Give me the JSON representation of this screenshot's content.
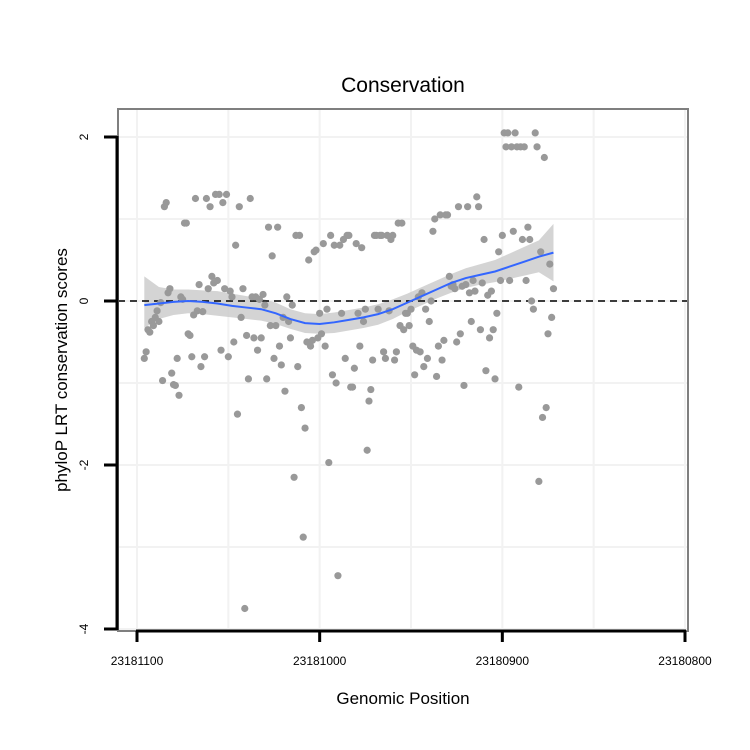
{
  "chart_data": {
    "type": "scatter",
    "title": "Conservation",
    "xlabel": "Genomic Position",
    "ylabel": "phyloP LRT conservation scores",
    "xlim": [
      23181100,
      23180800
    ],
    "x_reversed": true,
    "ylim": [
      -4,
      2.4
    ],
    "x_ticks": [
      23181100,
      23181000,
      23180900,
      23180800
    ],
    "x_tick_labels": [
      "23181100",
      "23181000",
      "23180900",
      "23180800"
    ],
    "y_ticks": [
      -4,
      -2,
      0,
      2
    ],
    "y_tick_labels": [
      "-4",
      "-2",
      "0",
      "2"
    ],
    "grid": true,
    "legend": "none",
    "reference_line": {
      "y": 0,
      "style": "dashed",
      "color": "#000000"
    },
    "colors": {
      "points": "#999999",
      "smooth_line": "#3366ff",
      "confidence_band": "#cccccc",
      "panel_border": "#7f7f7f",
      "grid": "#f2f2f2"
    },
    "series": [
      {
        "type": "scatter",
        "points": [
          [
            23181096,
            -0.7
          ],
          [
            23181095,
            -0.62
          ],
          [
            23181094,
            -0.35
          ],
          [
            23181093,
            -0.38
          ],
          [
            23181092,
            -0.25
          ],
          [
            23181091,
            -0.3
          ],
          [
            23181090,
            -0.2
          ],
          [
            23181089,
            -0.12
          ],
          [
            23181088,
            -0.25
          ],
          [
            23181087,
            -0.02
          ],
          [
            23181086,
            -0.97
          ],
          [
            23181085,
            1.15
          ],
          [
            23181084,
            1.2
          ],
          [
            23181083,
            0.1
          ],
          [
            23181082,
            0.15
          ],
          [
            23181081,
            -0.88
          ],
          [
            23181080,
            -1.02
          ],
          [
            23181079,
            -1.03
          ],
          [
            23181078,
            -0.7
          ],
          [
            23181077,
            -1.15
          ],
          [
            23181076,
            0.05
          ],
          [
            23181075,
            0.02
          ],
          [
            23181074,
            0.95
          ],
          [
            23181073,
            0.95
          ],
          [
            23181072,
            -0.4
          ],
          [
            23181071,
            -0.42
          ],
          [
            23181070,
            -0.68
          ],
          [
            23181069,
            -0.17
          ],
          [
            23181068,
            1.25
          ],
          [
            23181067,
            -0.12
          ],
          [
            23181066,
            0.2
          ],
          [
            23181065,
            -0.8
          ],
          [
            23181064,
            -0.13
          ],
          [
            23181063,
            -0.68
          ],
          [
            23181062,
            1.25
          ],
          [
            23181061,
            0.15
          ],
          [
            23181060,
            1.15
          ],
          [
            23181059,
            0.3
          ],
          [
            23181058,
            0.22
          ],
          [
            23181057,
            1.3
          ],
          [
            23181056,
            0.25
          ],
          [
            23181055,
            1.3
          ],
          [
            23181054,
            -0.6
          ],
          [
            23181053,
            1.2
          ],
          [
            23181052,
            0.15
          ],
          [
            23181051,
            1.3
          ],
          [
            23181050,
            -0.68
          ],
          [
            23181049,
            0.12
          ],
          [
            23181048,
            0.05
          ],
          [
            23181047,
            -0.5
          ],
          [
            23181046,
            0.68
          ],
          [
            23181045,
            -1.38
          ],
          [
            23181044,
            1.15
          ],
          [
            23181043,
            -0.2
          ],
          [
            23181042,
            0.15
          ],
          [
            23181041,
            -3.75
          ],
          [
            23181040,
            -0.42
          ],
          [
            23181039,
            -0.95
          ],
          [
            23181038,
            1.25
          ],
          [
            23181037,
            0.05
          ],
          [
            23181036,
            -0.45
          ],
          [
            23181035,
            0.05
          ],
          [
            23181034,
            -0.6
          ],
          [
            23181033,
            0.02
          ],
          [
            23181032,
            -0.45
          ],
          [
            23181031,
            0.08
          ],
          [
            23181030,
            -0.05
          ],
          [
            23181029,
            -0.95
          ],
          [
            23181028,
            0.9
          ],
          [
            23181027,
            -0.3
          ],
          [
            23181026,
            0.55
          ],
          [
            23181025,
            -0.7
          ],
          [
            23181024,
            -0.3
          ],
          [
            23181023,
            0.9
          ],
          [
            23181022,
            -0.55
          ],
          [
            23181021,
            -0.78
          ],
          [
            23181020,
            -0.2
          ],
          [
            23181019,
            -1.1
          ],
          [
            23181018,
            0.05
          ],
          [
            23181017,
            -0.25
          ],
          [
            23181016,
            -0.45
          ],
          [
            23181015,
            -0.05
          ],
          [
            23181014,
            -2.15
          ],
          [
            23181013,
            0.8
          ],
          [
            23181012,
            -0.8
          ],
          [
            23181011,
            0.8
          ],
          [
            23181010,
            -1.3
          ],
          [
            23181009,
            -2.88
          ],
          [
            23181008,
            -1.55
          ],
          [
            23181007,
            -0.5
          ],
          [
            23181006,
            0.5
          ],
          [
            23181005,
            -0.55
          ],
          [
            23181004,
            -0.48
          ],
          [
            23181003,
            0.6
          ],
          [
            23181002,
            0.62
          ],
          [
            23181001,
            -0.45
          ],
          [
            23181000,
            -0.15
          ],
          [
            23180999,
            -0.4
          ],
          [
            23180998,
            0.7
          ],
          [
            23180997,
            -0.55
          ],
          [
            23180996,
            -0.1
          ],
          [
            23180995,
            -1.97
          ],
          [
            23180994,
            0.8
          ],
          [
            23180993,
            -0.9
          ],
          [
            23180992,
            0.68
          ],
          [
            23180991,
            -1.0
          ],
          [
            23180990,
            -3.35
          ],
          [
            23180989,
            0.68
          ],
          [
            23180988,
            -0.15
          ],
          [
            23180987,
            0.75
          ],
          [
            23180986,
            -0.7
          ],
          [
            23180985,
            0.8
          ],
          [
            23180984,
            0.8
          ],
          [
            23180983,
            -1.05
          ],
          [
            23180982,
            -1.05
          ],
          [
            23180981,
            -0.82
          ],
          [
            23180980,
            0.7
          ],
          [
            23180979,
            -0.15
          ],
          [
            23180978,
            -0.55
          ],
          [
            23180977,
            0.65
          ],
          [
            23180976,
            -0.25
          ],
          [
            23180975,
            -0.1
          ],
          [
            23180974,
            -1.82
          ],
          [
            23180973,
            -1.22
          ],
          [
            23180972,
            -1.08
          ],
          [
            23180971,
            -0.72
          ],
          [
            23180970,
            0.8
          ],
          [
            23180969,
            0.8
          ],
          [
            23180968,
            -0.1
          ],
          [
            23180967,
            0.8
          ],
          [
            23180966,
            0.8
          ],
          [
            23180965,
            -0.62
          ],
          [
            23180964,
            -0.7
          ],
          [
            23180963,
            0.8
          ],
          [
            23180962,
            -0.12
          ],
          [
            23180961,
            0.75
          ],
          [
            23180960,
            0.8
          ],
          [
            23180959,
            -0.72
          ],
          [
            23180958,
            -0.62
          ],
          [
            23180957,
            0.95
          ],
          [
            23180956,
            -0.3
          ],
          [
            23180955,
            0.95
          ],
          [
            23180954,
            -0.35
          ],
          [
            23180953,
            -0.15
          ],
          [
            23180952,
            -0.15
          ],
          [
            23180951,
            -0.3
          ],
          [
            23180950,
            -0.1
          ],
          [
            23180949,
            -0.55
          ],
          [
            23180948,
            -0.9
          ],
          [
            23180947,
            -0.6
          ],
          [
            23180946,
            0.05
          ],
          [
            23180945,
            -0.62
          ],
          [
            23180944,
            0.1
          ],
          [
            23180943,
            -0.8
          ],
          [
            23180942,
            -0.1
          ],
          [
            23180941,
            -0.7
          ],
          [
            23180940,
            -0.25
          ],
          [
            23180939,
            0.0
          ],
          [
            23180938,
            0.85
          ],
          [
            23180937,
            1.0
          ],
          [
            23180936,
            -0.92
          ],
          [
            23180935,
            -0.55
          ],
          [
            23180934,
            1.05
          ],
          [
            23180933,
            -0.72
          ],
          [
            23180932,
            -0.48
          ],
          [
            23180931,
            1.05
          ],
          [
            23180930,
            1.05
          ],
          [
            23180929,
            0.3
          ],
          [
            23180928,
            0.18
          ],
          [
            23180927,
            0.2
          ],
          [
            23180926,
            0.15
          ],
          [
            23180925,
            -0.5
          ],
          [
            23180924,
            1.15
          ],
          [
            23180923,
            -0.4
          ],
          [
            23180922,
            0.18
          ],
          [
            23180921,
            -1.03
          ],
          [
            23180920,
            0.2
          ],
          [
            23180919,
            1.15
          ],
          [
            23180918,
            0.1
          ],
          [
            23180917,
            -0.25
          ],
          [
            23180916,
            0.25
          ],
          [
            23180915,
            0.12
          ],
          [
            23180914,
            1.27
          ],
          [
            23180913,
            1.15
          ],
          [
            23180912,
            -0.35
          ],
          [
            23180911,
            0.22
          ],
          [
            23180910,
            0.75
          ],
          [
            23180909,
            -0.85
          ],
          [
            23180908,
            0.07
          ],
          [
            23180907,
            -0.45
          ],
          [
            23180906,
            0.12
          ],
          [
            23180905,
            -0.35
          ],
          [
            23180904,
            -0.95
          ],
          [
            23180903,
            -0.15
          ],
          [
            23180902,
            0.6
          ],
          [
            23180901,
            0.25
          ],
          [
            23180900,
            0.8
          ],
          [
            23180899,
            2.05
          ],
          [
            23180898,
            1.88
          ],
          [
            23180897,
            2.05
          ],
          [
            23180896,
            0.25
          ],
          [
            23180895,
            1.88
          ],
          [
            23180894,
            0.85
          ],
          [
            23180893,
            2.05
          ],
          [
            23180892,
            1.88
          ],
          [
            23180891,
            -1.05
          ],
          [
            23180890,
            1.88
          ],
          [
            23180889,
            0.75
          ],
          [
            23180888,
            1.88
          ],
          [
            23180887,
            0.25
          ],
          [
            23180886,
            0.9
          ],
          [
            23180885,
            0.75
          ],
          [
            23180884,
            0.0
          ],
          [
            23180883,
            -0.1
          ],
          [
            23180882,
            2.05
          ],
          [
            23180881,
            1.88
          ],
          [
            23180880,
            -2.2
          ],
          [
            23180879,
            0.6
          ],
          [
            23180878,
            -1.42
          ],
          [
            23180877,
            1.75
          ],
          [
            23180876,
            -1.3
          ],
          [
            23180875,
            -0.4
          ],
          [
            23180874,
            0.45
          ],
          [
            23180873,
            -0.2
          ],
          [
            23180872,
            0.15
          ]
        ]
      },
      {
        "type": "line",
        "method": "loess smooth",
        "x": [
          23181096,
          23181088,
          23181080,
          23181072,
          23181064,
          23181056,
          23181048,
          23181040,
          23181032,
          23181024,
          23181016,
          23181008,
          23181000,
          23180992,
          23180984,
          23180976,
          23180968,
          23180960,
          23180952,
          23180944,
          23180936,
          23180928,
          23180920,
          23180912,
          23180904,
          23180896,
          23180888,
          23180880,
          23180872
        ],
        "y": [
          -0.05,
          -0.03,
          -0.01,
          0.0,
          -0.01,
          -0.03,
          -0.06,
          -0.08,
          -0.1,
          -0.15,
          -0.22,
          -0.27,
          -0.28,
          -0.26,
          -0.23,
          -0.2,
          -0.16,
          -0.1,
          -0.02,
          0.06,
          0.14,
          0.22,
          0.28,
          0.32,
          0.36,
          0.42,
          0.48,
          0.54,
          0.59
        ],
        "lower": [
          -0.33,
          -0.22,
          -0.17,
          -0.15,
          -0.16,
          -0.18,
          -0.2,
          -0.22,
          -0.24,
          -0.28,
          -0.34,
          -0.39,
          -0.4,
          -0.39,
          -0.36,
          -0.33,
          -0.29,
          -0.22,
          -0.13,
          -0.05,
          0.03,
          0.1,
          0.16,
          0.2,
          0.23,
          0.27,
          0.31,
          0.35,
          0.24
        ],
        "upper": [
          0.3,
          0.17,
          0.14,
          0.14,
          0.13,
          0.12,
          0.09,
          0.06,
          0.03,
          -0.02,
          -0.1,
          -0.15,
          -0.16,
          -0.14,
          -0.11,
          -0.08,
          -0.04,
          0.02,
          0.09,
          0.17,
          0.25,
          0.33,
          0.4,
          0.45,
          0.5,
          0.58,
          0.66,
          0.74,
          0.94
        ]
      }
    ]
  }
}
